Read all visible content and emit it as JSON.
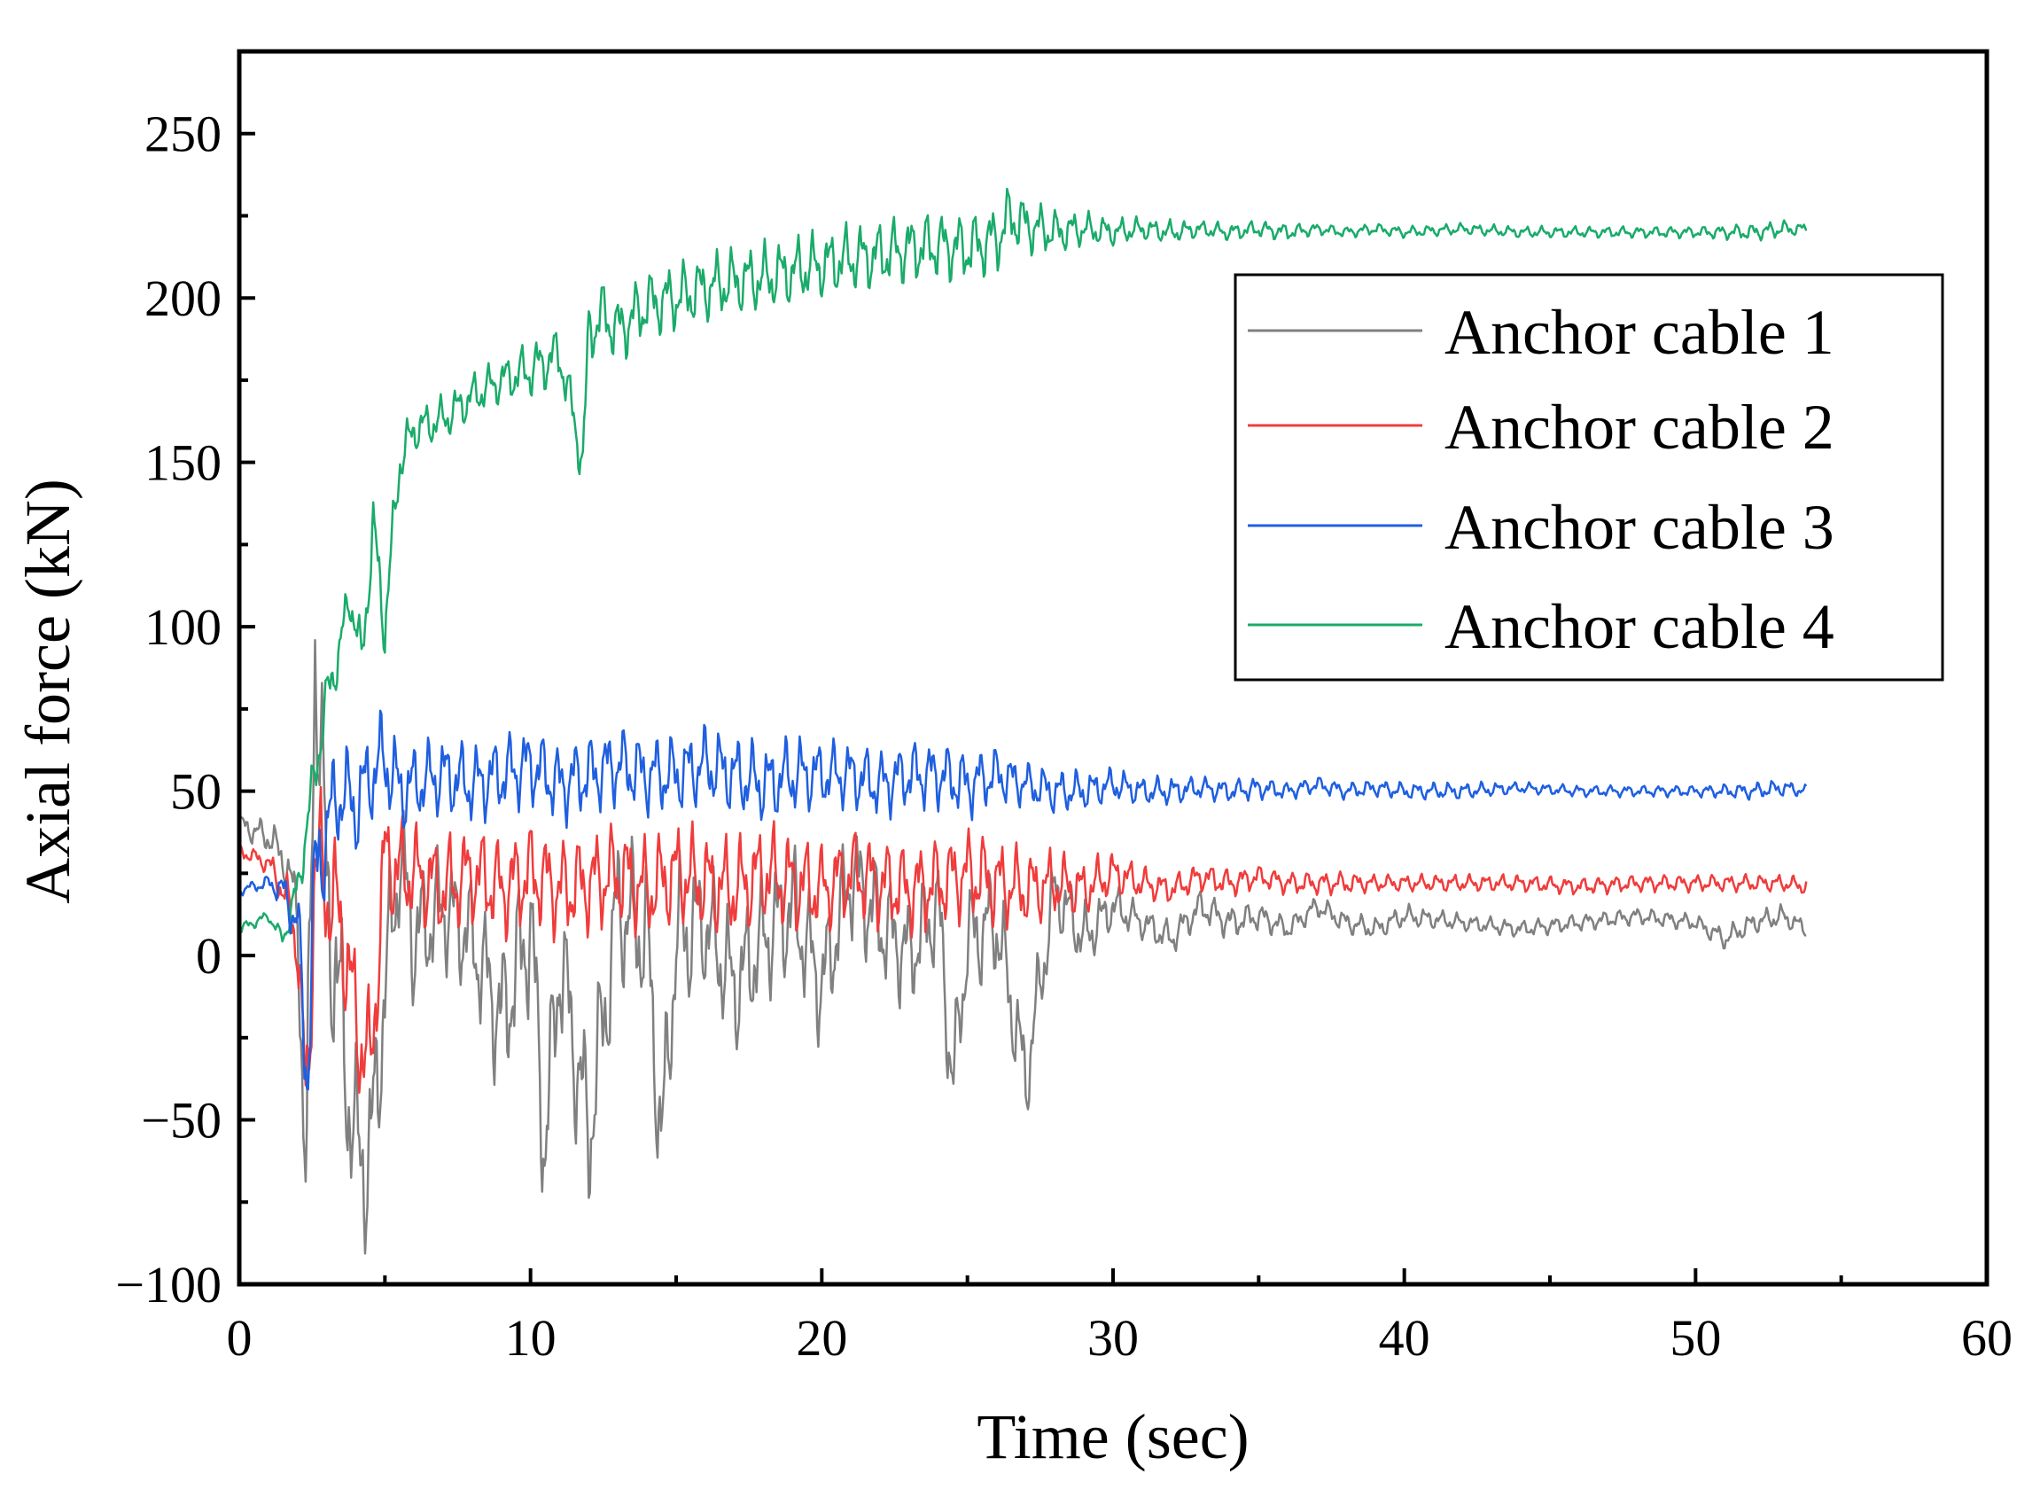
{
  "chart_data": {
    "type": "line",
    "title": "",
    "xlabel": "Time (sec)",
    "ylabel": "Axial force (kN)",
    "xlim": [
      0,
      60
    ],
    "ylim": [
      -100,
      275
    ],
    "xticks": [
      0,
      10,
      20,
      30,
      40,
      50,
      60
    ],
    "xtick_labels": [
      "0",
      "10",
      "20",
      "30",
      "40",
      "50",
      "60"
    ],
    "yticks": [
      -100,
      -50,
      0,
      50,
      100,
      150,
      200,
      250
    ],
    "ytick_labels": [
      "−100",
      "−50",
      "0",
      "50",
      "100",
      "150",
      "200",
      "250"
    ],
    "grid": false,
    "legend_position": "top-right",
    "series": [
      {
        "name": "Anchor cable 1",
        "color": "#808080",
        "x": [
          0,
          0.5,
          1.0,
          1.5,
          2.0,
          2.3,
          2.6,
          3.0,
          3.5,
          4.0,
          4.5,
          5.0,
          5.5,
          6,
          7,
          8,
          9,
          10,
          10.5,
          11,
          12,
          13,
          14,
          14.5,
          15,
          16,
          17,
          18,
          19,
          20,
          21,
          22,
          23,
          24,
          24.5,
          25,
          26,
          27,
          28,
          29,
          30,
          31,
          32,
          33,
          34,
          35,
          36,
          37,
          38,
          39,
          40,
          42,
          44,
          46,
          48,
          50,
          51,
          52,
          53,
          53.8
        ],
        "values": [
          40,
          38,
          36,
          30,
          15,
          -78,
          98,
          20,
          -20,
          -60,
          -62,
          -10,
          30,
          5,
          15,
          5,
          -20,
          10,
          -60,
          0,
          -55,
          15,
          5,
          -58,
          5,
          10,
          -10,
          5,
          15,
          -10,
          25,
          10,
          0,
          15,
          -40,
          5,
          10,
          -38,
          20,
          5,
          15,
          10,
          5,
          15,
          10,
          12,
          8,
          15,
          10,
          8,
          12,
          10,
          8,
          10,
          12,
          10,
          5,
          10,
          12,
          8
        ],
        "amp": [
          4,
          5,
          6,
          8,
          12,
          40,
          40,
          40,
          40,
          35,
          35,
          30,
          25,
          25,
          22,
          22,
          28,
          30,
          30,
          28,
          30,
          28,
          28,
          28,
          28,
          24,
          24,
          24,
          24,
          22,
          22,
          22,
          20,
          20,
          20,
          20,
          20,
          18,
          14,
          12,
          8,
          6,
          6,
          6,
          6,
          5,
          4,
          4,
          4,
          4,
          4,
          3,
          3,
          3,
          3,
          3,
          4,
          4,
          4,
          3
        ]
      },
      {
        "name": "Anchor cable 2",
        "color": "#f03c3c",
        "x": [
          0,
          0.5,
          1.0,
          1.5,
          2.0,
          2.3,
          2.6,
          3.0,
          3.5,
          4.0,
          4.5,
          5.0,
          5.5,
          6,
          7,
          8,
          9,
          10,
          11,
          12,
          13,
          14,
          15,
          16,
          17,
          18,
          19,
          20,
          21,
          22,
          23,
          24,
          25,
          26,
          27,
          28,
          29,
          30,
          31,
          32,
          33,
          34,
          35,
          36,
          37,
          38,
          39,
          40,
          42,
          44,
          46,
          48,
          50,
          52,
          53,
          53.8
        ],
        "values": [
          32,
          30,
          28,
          20,
          5,
          -50,
          30,
          20,
          10,
          -20,
          -35,
          30,
          25,
          25,
          20,
          25,
          20,
          25,
          20,
          22,
          25,
          20,
          25,
          22,
          20,
          25,
          22,
          20,
          25,
          22,
          20,
          22,
          25,
          22,
          20,
          22,
          20,
          25,
          22,
          20,
          24,
          22,
          24,
          22,
          22,
          22,
          22,
          22,
          22,
          22,
          21,
          22,
          22,
          22,
          22,
          21
        ],
        "amp": [
          3,
          3,
          4,
          8,
          15,
          30,
          30,
          25,
          25,
          25,
          25,
          22,
          20,
          18,
          18,
          18,
          18,
          18,
          18,
          18,
          18,
          18,
          18,
          18,
          18,
          18,
          18,
          16,
          16,
          16,
          16,
          16,
          16,
          16,
          14,
          12,
          10,
          8,
          6,
          5,
          5,
          5,
          4,
          4,
          4,
          4,
          3,
          3,
          3,
          3,
          3,
          3,
          3,
          3,
          3,
          3
        ]
      },
      {
        "name": "Anchor cable 3",
        "color": "#1f5fe0",
        "x": [
          0,
          0.5,
          1.0,
          1.5,
          2.0,
          2.3,
          2.6,
          3.0,
          3.5,
          4.0,
          4.5,
          5.0,
          5.5,
          6,
          7,
          8,
          9,
          10,
          11,
          12,
          13,
          14,
          15,
          16,
          17,
          18,
          19,
          20,
          21,
          22,
          23,
          24,
          25,
          26,
          27,
          28,
          29,
          30,
          31,
          32,
          33,
          34,
          35,
          36,
          37,
          38,
          39,
          40,
          42,
          44,
          46,
          48,
          50,
          52,
          53,
          53.8
        ],
        "values": [
          20,
          21,
          22,
          20,
          10,
          -35,
          20,
          40,
          50,
          45,
          55,
          60,
          50,
          52,
          55,
          52,
          55,
          58,
          52,
          55,
          58,
          55,
          55,
          58,
          55,
          52,
          55,
          55,
          55,
          52,
          55,
          55,
          52,
          55,
          52,
          50,
          50,
          52,
          50,
          50,
          51,
          50,
          51,
          50,
          52,
          50,
          51,
          50,
          50,
          51,
          50,
          50,
          50,
          50,
          51,
          50
        ],
        "amp": [
          2,
          2,
          3,
          6,
          12,
          30,
          30,
          20,
          18,
          18,
          18,
          18,
          16,
          14,
          14,
          14,
          14,
          14,
          14,
          14,
          14,
          14,
          14,
          14,
          14,
          14,
          14,
          12,
          12,
          12,
          12,
          12,
          12,
          10,
          8,
          8,
          7,
          6,
          5,
          5,
          4,
          4,
          4,
          3,
          3,
          3,
          3,
          3,
          3,
          2,
          2,
          2,
          2,
          3,
          3,
          2
        ]
      },
      {
        "name": "Anchor cable 4",
        "color": "#1aab6a",
        "x": [
          0,
          0.5,
          1.0,
          1.5,
          2.0,
          2.5,
          3.0,
          3.5,
          3.8,
          4.2,
          4.6,
          5.0,
          5.5,
          6,
          7,
          8,
          9,
          10,
          11,
          11.8,
          12,
          12.5,
          13,
          14,
          15,
          16,
          17,
          18,
          19,
          20,
          21,
          22,
          23,
          24,
          25,
          26,
          26.5,
          27,
          28,
          29,
          30,
          31,
          32,
          33,
          34,
          35,
          36,
          37,
          38,
          39,
          40,
          42,
          44,
          46,
          48,
          50,
          52,
          53,
          53.8
        ],
        "values": [
          8,
          10,
          12,
          5,
          20,
          50,
          78,
          95,
          110,
          90,
          130,
          100,
          150,
          160,
          163,
          170,
          175,
          178,
          183,
          150,
          190,
          195,
          190,
          198,
          200,
          203,
          205,
          206,
          208,
          210,
          212,
          213,
          215,
          216,
          215,
          218,
          225,
          222,
          220,
          221,
          220,
          221,
          220,
          221,
          220,
          221,
          220,
          221,
          220,
          221,
          220,
          221,
          220,
          220,
          220,
          220,
          220,
          221,
          221
        ],
        "amp": [
          2,
          2,
          2,
          3,
          8,
          10,
          10,
          10,
          10,
          10,
          12,
          12,
          10,
          8,
          8,
          8,
          8,
          10,
          10,
          10,
          12,
          12,
          12,
          12,
          12,
          12,
          12,
          12,
          12,
          12,
          12,
          12,
          12,
          12,
          12,
          12,
          12,
          10,
          8,
          6,
          5,
          4,
          4,
          3,
          3,
          3,
          3,
          2,
          2,
          2,
          2,
          2,
          2,
          2,
          2,
          2,
          3,
          3,
          2
        ]
      }
    ]
  }
}
